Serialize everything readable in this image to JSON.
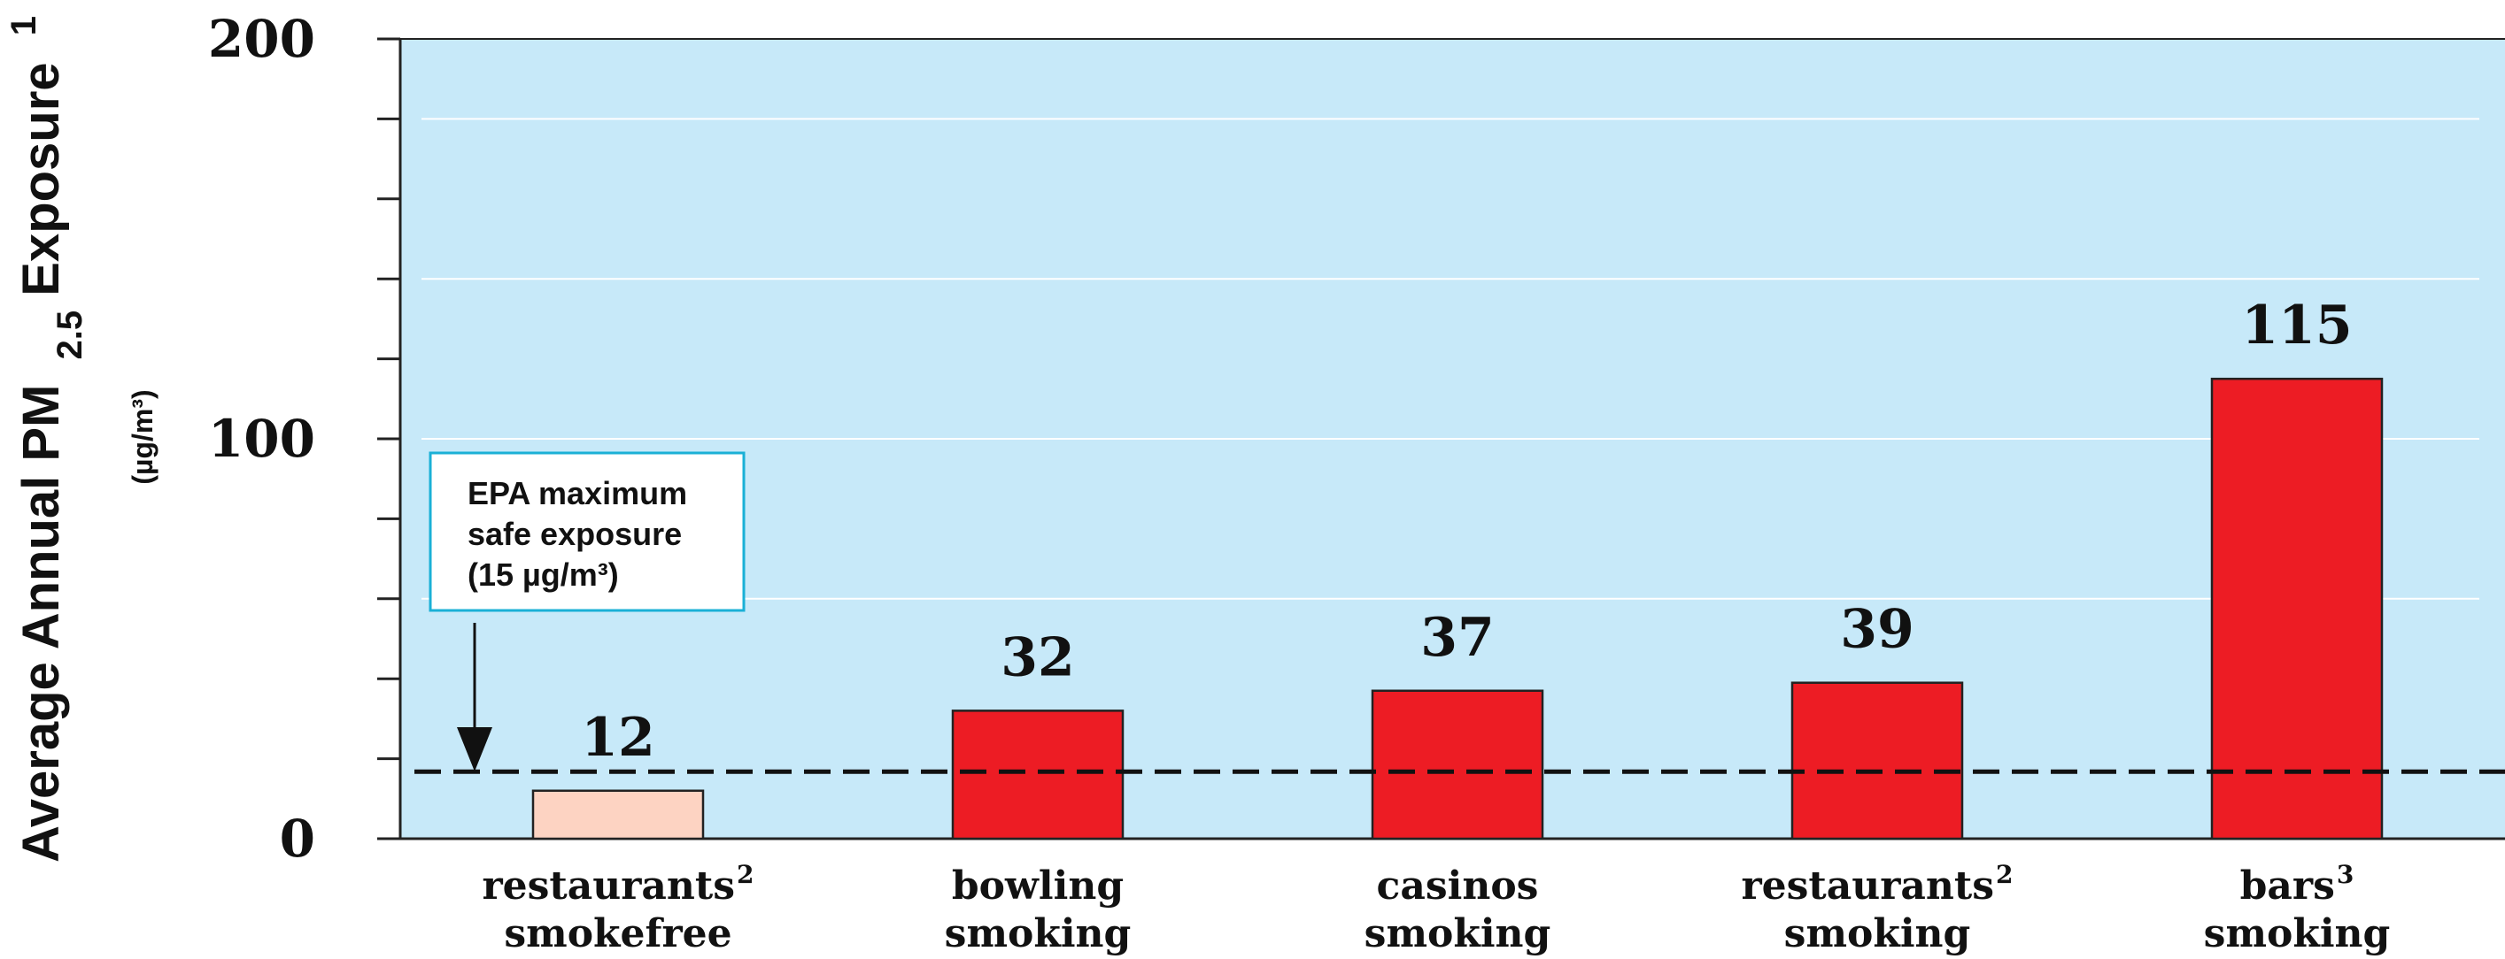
{
  "chart_data": {
    "type": "bar",
    "ylabel": {
      "main": "Average Annual PM",
      "subscript": "2.5",
      "after": " Exposure",
      "superscript": "1"
    },
    "yunit": "(µg/m³)",
    "ylim": [
      0,
      200
    ],
    "yticks": [
      {
        "value": 0,
        "label": "0"
      },
      {
        "value": 100,
        "label": "100"
      },
      {
        "value": 200,
        "label": "200"
      }
    ],
    "minor_tick_step": 20,
    "gridlines": [
      60,
      100,
      140,
      180
    ],
    "categories": [
      {
        "line1": "restaurants",
        "sup": "2",
        "line2": "smokefree"
      },
      {
        "line1": "bowling",
        "sup": "",
        "line2": "smoking"
      },
      {
        "line1": "casinos",
        "sup": "",
        "line2": "smoking"
      },
      {
        "line1": "restaurants",
        "sup": "2",
        "line2": "smoking"
      },
      {
        "line1": "bars",
        "sup": "3",
        "line2": "smoking"
      }
    ],
    "values": [
      12,
      32,
      37,
      39,
      115
    ],
    "value_labels": [
      "12",
      "32",
      "37",
      "39",
      "115"
    ],
    "bar_colors": [
      "#fdd3c2",
      "#ed1c24",
      "#ed1c24",
      "#ed1c24",
      "#ed1c24"
    ],
    "reference_line": {
      "value": 15,
      "style": "dashed",
      "annotation": [
        "EPA maximum",
        "safe exposure",
        "(15 µg/m³)"
      ]
    },
    "plot_background": "#c7e9f9",
    "grid_color": "#ffffff",
    "annotation_border": "#1ab0d6"
  }
}
